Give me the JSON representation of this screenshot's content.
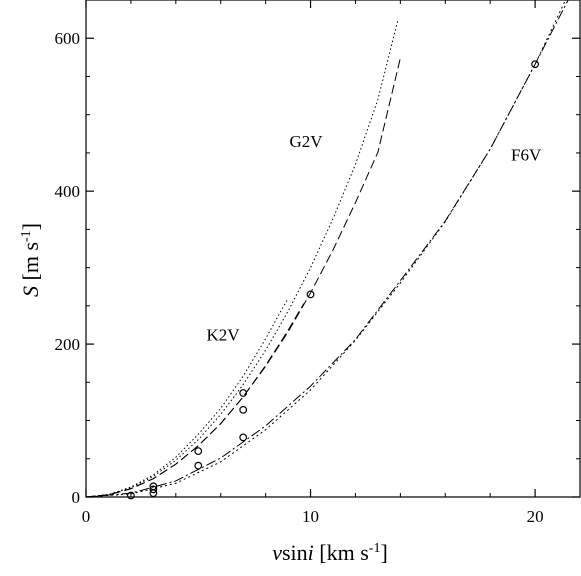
{
  "chart_data": {
    "type": "line",
    "title": "",
    "xlabel": {
      "main": "v",
      "mid": "sin",
      "italic": "i",
      "rest": " [km s",
      "sup": "-1",
      "close": "]"
    },
    "ylabel": {
      "main": "S",
      "rest": " [m s",
      "sup": "-1",
      "close": "]"
    },
    "xlim": [
      0,
      22
    ],
    "ylim": [
      0,
      650
    ],
    "x_ticks": [
      0,
      10,
      20
    ],
    "y_ticks": [
      0,
      200,
      400,
      600
    ],
    "grid": false,
    "series": [
      {
        "name": "K2V",
        "fit": [
          [
            0,
            0
          ],
          [
            1,
            3
          ],
          [
            2,
            11
          ],
          [
            3,
            24
          ],
          [
            4,
            43
          ],
          [
            5,
            67
          ],
          [
            6,
            96
          ],
          [
            7,
            131
          ],
          [
            8,
            172
          ],
          [
            9,
            218
          ],
          [
            9.7,
            253
          ]
        ],
        "fit2": [
          [
            0,
            0
          ],
          [
            1,
            3.3
          ],
          [
            2,
            13
          ],
          [
            3,
            29
          ],
          [
            4,
            52
          ],
          [
            5,
            82
          ],
          [
            6,
            116
          ],
          [
            7,
            158
          ],
          [
            8,
            207
          ],
          [
            9,
            260
          ]
        ],
        "points": [
          [
            2,
            2
          ],
          [
            3,
            14
          ],
          [
            5,
            60
          ],
          [
            7,
            136
          ]
        ]
      },
      {
        "name": "G2V",
        "fit": [
          [
            0,
            0
          ],
          [
            1,
            2.7
          ],
          [
            2,
            10.7
          ],
          [
            3,
            24
          ],
          [
            4,
            43
          ],
          [
            5,
            67
          ],
          [
            6,
            96
          ],
          [
            7,
            131
          ],
          [
            8,
            171
          ],
          [
            9,
            216
          ],
          [
            10,
            267
          ],
          [
            11,
            323
          ],
          [
            12,
            385
          ],
          [
            13,
            451
          ],
          [
            14,
            574
          ]
        ],
        "fit2": [
          [
            0,
            0
          ],
          [
            1,
            3
          ],
          [
            2,
            12
          ],
          [
            3,
            27
          ],
          [
            4,
            48
          ],
          [
            5,
            75
          ],
          [
            6,
            108
          ],
          [
            7,
            147
          ],
          [
            8,
            192
          ],
          [
            9,
            243
          ],
          [
            10,
            300
          ],
          [
            11,
            364
          ],
          [
            12,
            435
          ],
          [
            13,
            520
          ],
          [
            13.9,
            625
          ]
        ],
        "points": [
          [
            3,
            10
          ],
          [
            5,
            41
          ],
          [
            7,
            114
          ],
          [
            10,
            265
          ]
        ]
      },
      {
        "name": "F6V",
        "fit": [
          [
            0,
            0
          ],
          [
            2,
            5
          ],
          [
            4,
            21
          ],
          [
            6,
            51
          ],
          [
            8,
            93
          ],
          [
            10,
            145
          ],
          [
            12,
            206
          ],
          [
            14,
            283
          ],
          [
            16,
            361
          ],
          [
            18,
            455
          ],
          [
            20,
            566
          ],
          [
            22,
            680
          ]
        ],
        "fit2": [
          [
            0,
            0
          ],
          [
            2,
            4
          ],
          [
            4,
            18
          ],
          [
            6,
            46
          ],
          [
            8,
            88
          ],
          [
            10,
            140
          ],
          [
            12,
            205
          ],
          [
            14,
            280
          ],
          [
            16,
            360
          ],
          [
            18,
            455
          ],
          [
            20,
            566
          ],
          [
            22,
            690
          ]
        ],
        "points": [
          [
            3,
            5
          ],
          [
            7,
            78
          ],
          [
            20,
            566
          ]
        ]
      }
    ],
    "series_labels": {
      "K2V": {
        "x": 6.1,
        "y": 205
      },
      "G2V": {
        "x": 9.8,
        "y": 458
      },
      "F6V": {
        "x": 19.6,
        "y": 440
      }
    }
  }
}
